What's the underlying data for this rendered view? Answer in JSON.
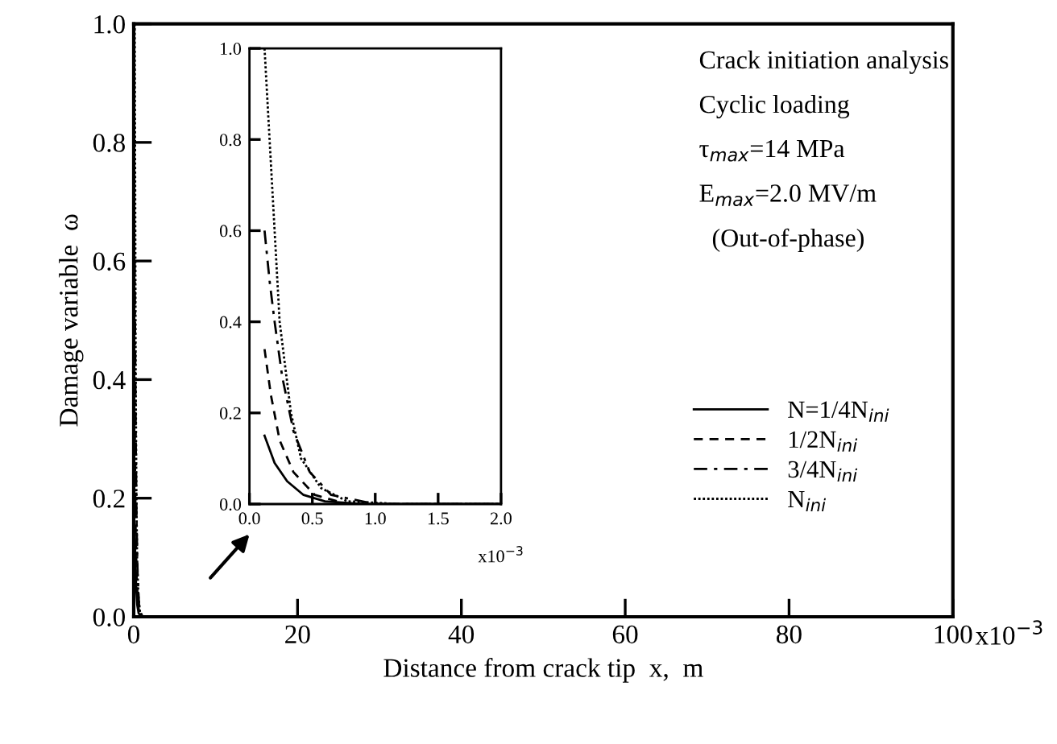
{
  "chart_data": [
    {
      "type": "line",
      "xlabel": "Distance from crack tip  x,  m",
      "ylabel": "Damage variable  ω",
      "xlim": [
        0,
        100
      ],
      "xticks": [
        0,
        20,
        40,
        60,
        80,
        100
      ],
      "ylim": [
        0,
        1.0
      ],
      "yticks": [
        {
          "value": 0,
          "label": "0.0"
        },
        {
          "value": 0.2,
          "label": "0.2"
        },
        {
          "value": 0.4,
          "label": "0.4"
        },
        {
          "value": 0.6,
          "label": "0.6"
        },
        {
          "value": 0.8,
          "label": "0.8"
        },
        {
          "value": 1.0,
          "label": "1.0"
        }
      ],
      "grid": false,
      "legend": "right",
      "marker": "none",
      "annotations": [
        "x10$^{−3}$",
        "Crack initiation analysis",
        "Cyclic loading",
        "τ$_{max}$=14 MPa",
        "E$_{max}$=2.0 MV/m",
        "  (Out-of-phase)"
      ],
      "series": [
        {
          "name": "N=1/4N$_{ini}$",
          "color": "#000000",
          "line_style": "solid",
          "x": [
            0.12,
            0.2,
            0.3,
            0.43,
            0.6,
            0.9,
            2.0
          ],
          "values": [
            0.15,
            0.09,
            0.05,
            0.02,
            0.006,
            0,
            0
          ]
        },
        {
          "name": "1/2N$_{ini}$",
          "color": "#000000",
          "line_style": "dashed",
          "x": [
            0.12,
            0.17,
            0.24,
            0.35,
            0.52,
            0.78,
            2.0
          ],
          "values": [
            0.34,
            0.24,
            0.14,
            0.07,
            0.02,
            0,
            0
          ]
        },
        {
          "name": "3/4N$_{ini}$",
          "color": "#000000",
          "line_style": "dashdot",
          "x": [
            0.12,
            0.16,
            0.2,
            0.26,
            0.35,
            0.48,
            0.65,
            1.0,
            2.0
          ],
          "values": [
            0.6,
            0.49,
            0.4,
            0.28,
            0.16,
            0.07,
            0.02,
            0,
            0
          ]
        },
        {
          "name": "N$_{ini}$",
          "color": "#000000",
          "line_style": "dotted",
          "x": [
            0.12,
            0.16,
            0.2,
            0.24,
            0.33,
            0.41,
            0.57,
            0.78,
            1.2,
            2.0
          ],
          "values": [
            1.0,
            0.8,
            0.6,
            0.4,
            0.2,
            0.1,
            0.035,
            0.006,
            0,
            0
          ]
        }
      ]
    },
    {
      "type": "line",
      "xlim": [
        0,
        2.0
      ],
      "xticks": [
        {
          "value": 0,
          "label": "0.0"
        },
        {
          "value": 0.5,
          "label": "0.5"
        },
        {
          "value": 1.0,
          "label": "1.0"
        },
        {
          "value": 1.5,
          "label": "1.5"
        },
        {
          "value": 2.0,
          "label": "2.0"
        }
      ],
      "ylim": [
        0,
        1.0
      ],
      "yticks": [
        {
          "value": 0,
          "label": "0.0"
        },
        {
          "value": 0.2,
          "label": "0.2"
        },
        {
          "value": 0.4,
          "label": "0.4"
        },
        {
          "value": 0.6,
          "label": "0.6"
        },
        {
          "value": 0.8,
          "label": "0.8"
        },
        {
          "value": 1.0,
          "label": "1.0"
        }
      ],
      "grid": false,
      "marker": "none",
      "annotations": [
        "x10$^{−3}$"
      ],
      "series": [
        {
          "color": "#000000",
          "line_style": "solid",
          "x": [
            0.12,
            0.2,
            0.3,
            0.43,
            0.6,
            0.9,
            2.0
          ],
          "values": [
            0.15,
            0.09,
            0.05,
            0.02,
            0.006,
            0,
            0
          ]
        },
        {
          "color": "#000000",
          "line_style": "dashed",
          "x": [
            0.12,
            0.17,
            0.24,
            0.35,
            0.52,
            0.78,
            2.0
          ],
          "values": [
            0.34,
            0.24,
            0.14,
            0.07,
            0.02,
            0,
            0
          ]
        },
        {
          "color": "#000000",
          "line_style": "dashdot",
          "x": [
            0.12,
            0.16,
            0.2,
            0.26,
            0.35,
            0.48,
            0.65,
            1.0,
            2.0
          ],
          "values": [
            0.6,
            0.49,
            0.4,
            0.28,
            0.16,
            0.07,
            0.02,
            0,
            0
          ]
        },
        {
          "color": "#000000",
          "line_style": "dotted",
          "x": [
            0.12,
            0.16,
            0.2,
            0.24,
            0.33,
            0.41,
            0.57,
            0.78,
            1.2,
            2.0
          ],
          "values": [
            1.0,
            0.8,
            0.6,
            0.4,
            0.2,
            0.1,
            0.035,
            0.006,
            0,
            0
          ]
        }
      ]
    }
  ]
}
